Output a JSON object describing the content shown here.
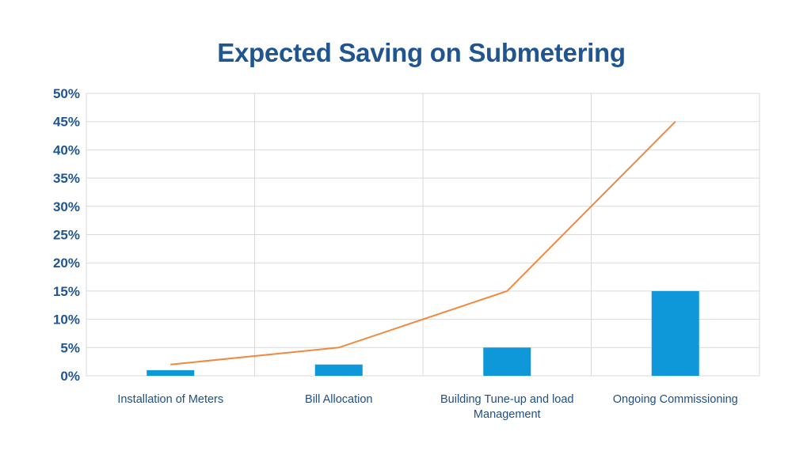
{
  "chart_data": {
    "type": "bar",
    "title": "Expected Saving on Submetering",
    "xlabel": "",
    "ylabel": "",
    "categories": [
      [
        "Installation of Meters"
      ],
      [
        "Bill Allocation"
      ],
      [
        "Building Tune-up and load",
        "Management"
      ],
      [
        "Ongoing Commissioning"
      ]
    ],
    "series": [
      {
        "type": "bar",
        "values": [
          1,
          2,
          5,
          15
        ]
      },
      {
        "type": "line",
        "values": [
          2,
          5,
          15,
          45
        ]
      }
    ],
    "ylim": [
      0,
      50
    ],
    "yticks": [
      "0%",
      "5%",
      "10%",
      "15%",
      "20%",
      "25%",
      "30%",
      "35%",
      "40%",
      "45%",
      "50%"
    ],
    "grid": true,
    "legend": "none",
    "colors": {
      "bar": "#0e97d9",
      "line": "#f0883e",
      "text": "#1f5591",
      "grid": "#d9d9d9"
    }
  }
}
